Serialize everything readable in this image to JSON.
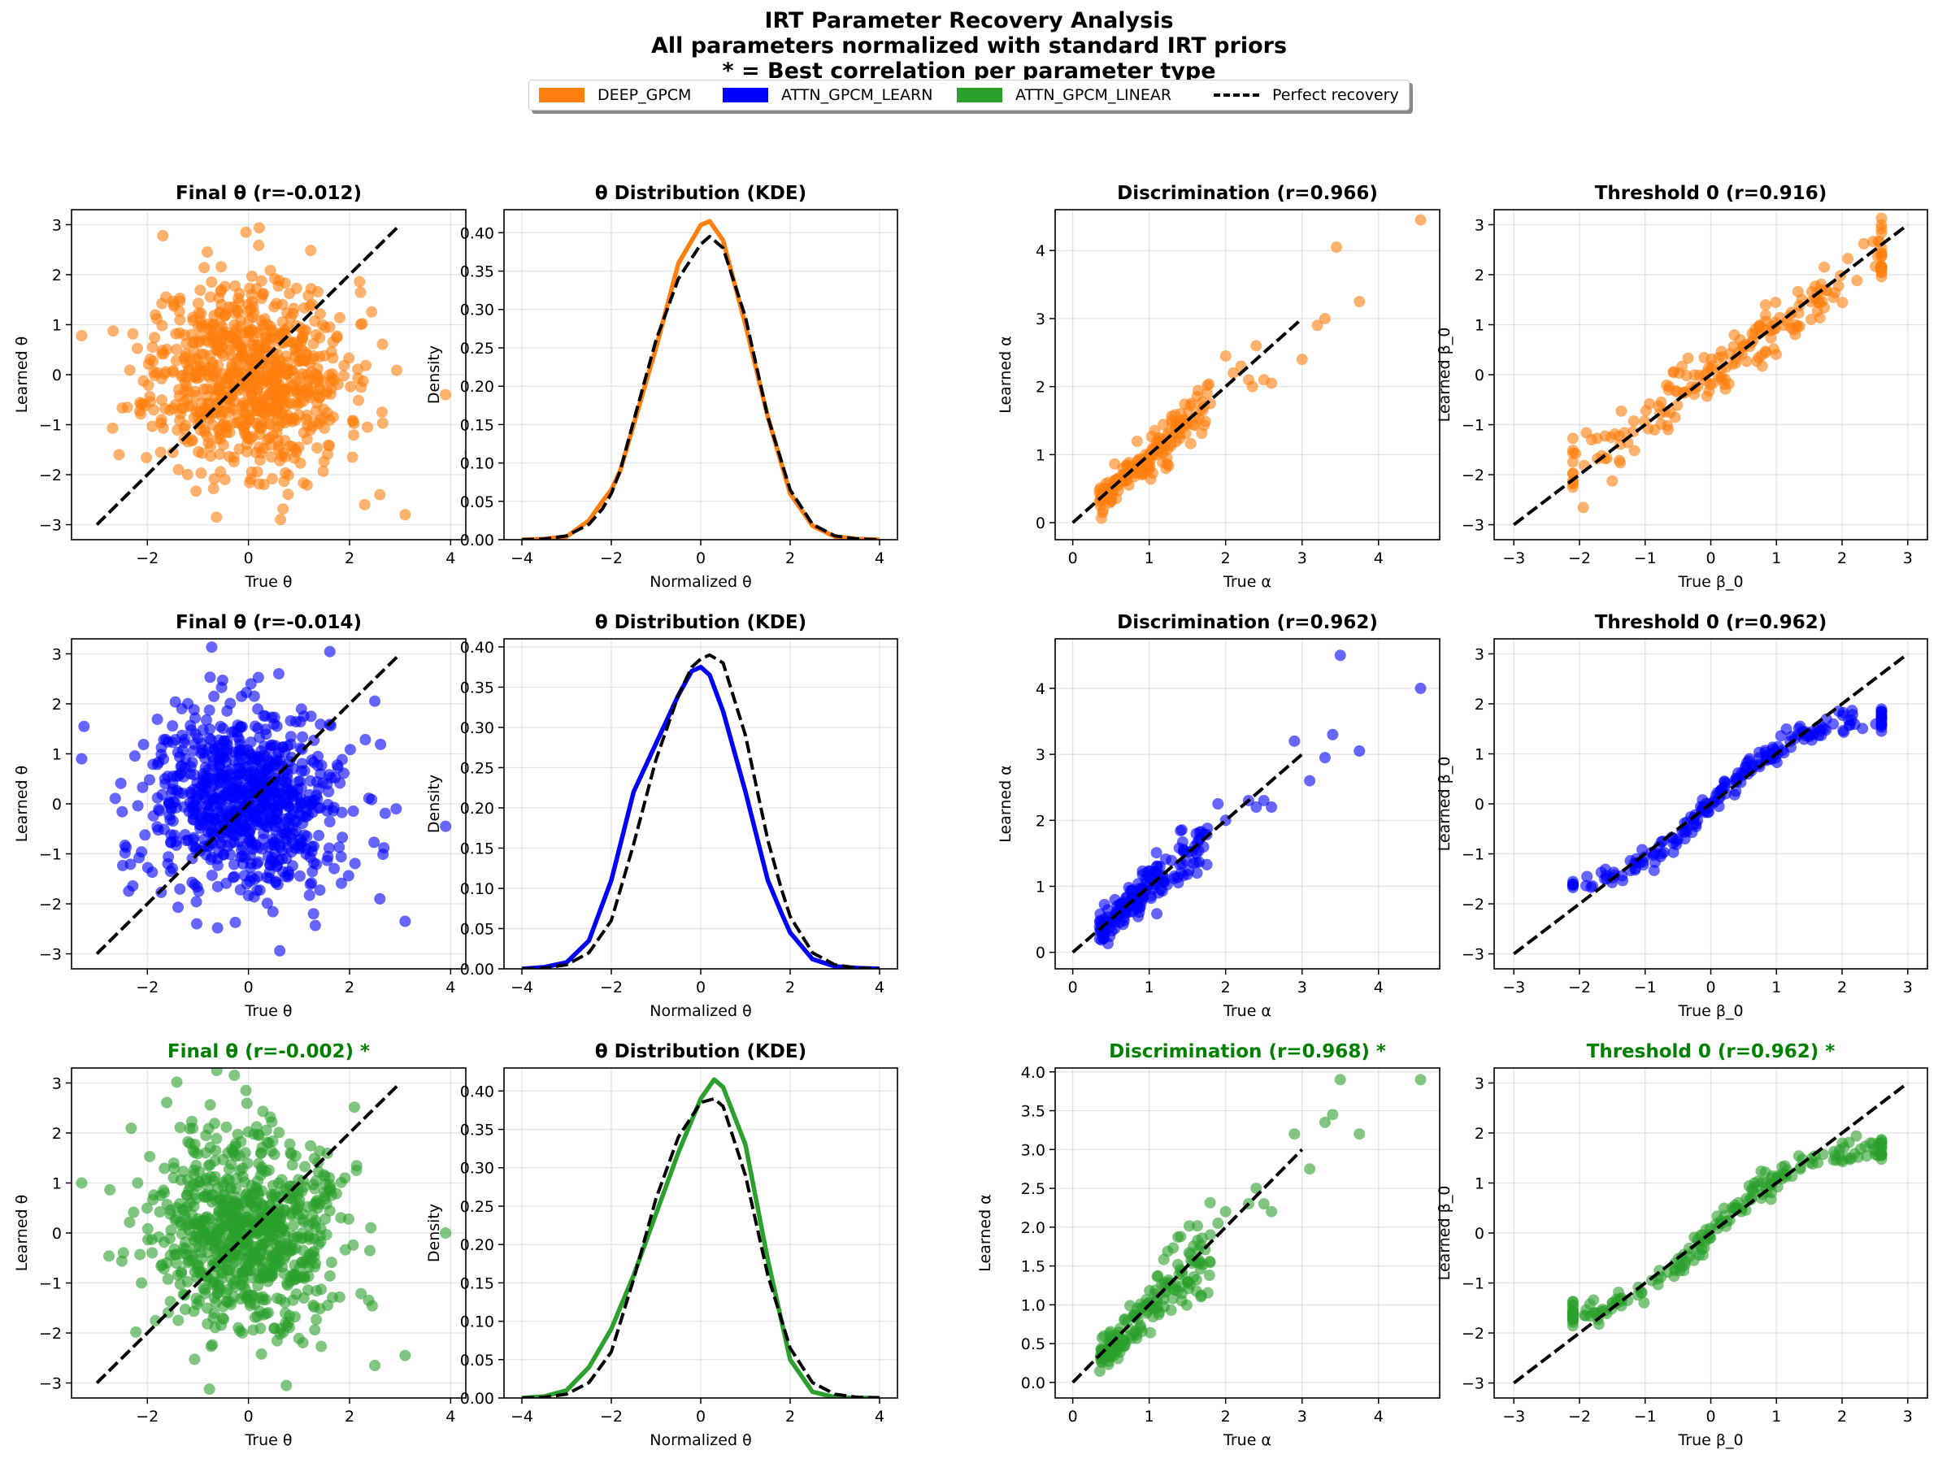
{
  "suptitle": {
    "line1": "IRT Parameter Recovery Analysis",
    "line2": "All parameters normalized with standard IRT priors",
    "line3": "* = Best correlation per parameter type"
  },
  "legend": [
    {
      "label": "DEEP_GPCM",
      "color": "#ff7f0e",
      "kind": "patch"
    },
    {
      "label": "ATTN_GPCM_LEARN",
      "color": "#0000ff",
      "kind": "patch"
    },
    {
      "label": "ATTN_GPCM_LINEAR",
      "color": "#2ca02c",
      "kind": "patch"
    },
    {
      "label": "Perfect recovery",
      "color": "#000000",
      "kind": "dashed"
    }
  ],
  "colors": {
    "DEEP_GPCM": "#ff7f0e",
    "ATTN_GPCM_LEARN": "#0000ff",
    "ATTN_GPCM_LINEAR": "#2ca02c",
    "best_title": "#008000",
    "reference": "#000000"
  },
  "chart_data": [
    {
      "type": "scatter",
      "title": "Final θ (r=-0.012)",
      "best": false,
      "xlabel": "True θ",
      "ylabel": "Learned θ",
      "xlim": [
        -3.5,
        4.3
      ],
      "ylim": [
        -3.3,
        3.3
      ],
      "xticks": [
        -2,
        0,
        2,
        4
      ],
      "yticks": [
        -3,
        -2,
        -1,
        0,
        1,
        2,
        3
      ],
      "series_color": "#ff7f0e",
      "n_points": 800,
      "x_sd": 0.95,
      "y_sd": 0.95,
      "r": -0.012,
      "seed": 11,
      "outliers": [
        [
          -3.3,
          0.78
        ],
        [
          3.9,
          -0.4
        ],
        [
          3.1,
          -2.8
        ],
        [
          2.3,
          -2.6
        ],
        [
          2.6,
          -2.4
        ],
        [
          -0.05,
          2.85
        ]
      ],
      "reference_line": [
        [
          -3,
          -3
        ],
        [
          3,
          3
        ]
      ],
      "grid": true
    },
    {
      "type": "line",
      "title": "θ Distribution (KDE)",
      "best": false,
      "xlabel": "Normalized θ",
      "ylabel": "Density",
      "xlim": [
        -4.4,
        4.4
      ],
      "ylim": [
        0,
        0.43
      ],
      "xticks": [
        -4,
        -2,
        0,
        2,
        4
      ],
      "yticks": [
        0,
        0.05,
        0.1,
        0.15,
        0.2,
        0.25,
        0.3,
        0.35,
        0.4
      ],
      "ytick_labels": [
        "0.00",
        "0.05",
        "0.10",
        "0.15",
        "0.20",
        "0.25",
        "0.30",
        "0.35",
        "0.40"
      ],
      "x": [
        -4,
        -3.5,
        -3,
        -2.5,
        -2.2,
        -2,
        -1.8,
        -1.5,
        -1,
        -0.5,
        0,
        0.2,
        0.5,
        1,
        1.5,
        2,
        2.5,
        3,
        3.5,
        4
      ],
      "series": [
        {
          "name": "DEEP_GPCM",
          "color": "#ff7f0e",
          "values": [
            0,
            0.001,
            0.004,
            0.025,
            0.05,
            0.065,
            0.09,
            0.15,
            0.25,
            0.36,
            0.41,
            0.415,
            0.39,
            0.28,
            0.16,
            0.06,
            0.018,
            0.004,
            0.001,
            0
          ]
        },
        {
          "name": "Perfect recovery",
          "color": "#000000",
          "dashed": true,
          "values": [
            0,
            0.001,
            0.005,
            0.02,
            0.04,
            0.06,
            0.09,
            0.155,
            0.26,
            0.34,
            0.385,
            0.395,
            0.38,
            0.29,
            0.16,
            0.065,
            0.02,
            0.005,
            0.001,
            0
          ]
        }
      ],
      "grid": true
    },
    {
      "type": "scatter",
      "title": "Discrimination (r=0.966)",
      "best": false,
      "xlabel": "True α",
      "ylabel": "Learned α",
      "xlim": [
        -0.23,
        4.8
      ],
      "ylim": [
        -0.25,
        4.6
      ],
      "xticks": [
        0,
        1,
        2,
        3,
        4
      ],
      "yticks": [
        0,
        1,
        2,
        3,
        4
      ],
      "series_color": "#ff7f0e",
      "alpha_points": [
        [
          0.4,
          0.35
        ],
        [
          0.45,
          0.5
        ],
        [
          0.5,
          0.42
        ],
        [
          0.55,
          0.6
        ],
        [
          0.6,
          0.55
        ],
        [
          0.65,
          0.7
        ],
        [
          0.7,
          0.62
        ],
        [
          0.75,
          0.8
        ],
        [
          0.8,
          0.72
        ],
        [
          0.85,
          0.9
        ],
        [
          0.9,
          0.85
        ],
        [
          0.95,
          1.0
        ],
        [
          1.0,
          0.95
        ],
        [
          1.05,
          1.1
        ],
        [
          1.1,
          1.0
        ],
        [
          1.15,
          1.2
        ],
        [
          1.2,
          1.15
        ],
        [
          1.25,
          1.3
        ],
        [
          1.3,
          1.25
        ],
        [
          1.35,
          1.4
        ],
        [
          1.4,
          1.3
        ],
        [
          1.45,
          1.5
        ],
        [
          1.5,
          1.45
        ],
        [
          1.6,
          1.55
        ],
        [
          1.7,
          1.65
        ],
        [
          1.8,
          1.75
        ],
        [
          2.0,
          2.45
        ],
        [
          2.1,
          2.2
        ],
        [
          2.2,
          2.3
        ],
        [
          2.3,
          2.1
        ],
        [
          2.4,
          2.6
        ],
        [
          2.5,
          2.1
        ],
        [
          2.6,
          2.05
        ],
        [
          2.35,
          2.0
        ],
        [
          3.0,
          2.4
        ],
        [
          3.2,
          2.9
        ],
        [
          3.3,
          3.0
        ],
        [
          3.45,
          4.05
        ],
        [
          3.75,
          3.25
        ],
        [
          4.55,
          4.45
        ]
      ],
      "dense_range": [
        0.35,
        1.8
      ],
      "dense_n": 150,
      "r": 0.966,
      "seed": 21,
      "reference_line": [
        [
          0,
          0
        ],
        [
          3,
          3
        ]
      ],
      "grid": true
    },
    {
      "type": "scatter",
      "title": "Threshold 0 (r=0.916)",
      "best": false,
      "xlabel": "True β_0",
      "ylabel": "Learned β_0",
      "xlim": [
        -3.3,
        3.3
      ],
      "ylim": [
        -3.3,
        3.3
      ],
      "xticks": [
        -3,
        -2,
        -1,
        0,
        1,
        2,
        3
      ],
      "yticks": [
        -3,
        -2,
        -1,
        0,
        1,
        2,
        3
      ],
      "series_color": "#ff7f0e",
      "dense_range": [
        -2.1,
        2.6
      ],
      "dense_n": 200,
      "mode": "linear_noise",
      "noise": 0.3,
      "seed": 31,
      "reference_line": [
        [
          -3,
          -3
        ],
        [
          3,
          3
        ]
      ],
      "grid": true
    },
    {
      "type": "scatter",
      "title": "Final θ (r=-0.014)",
      "best": false,
      "xlabel": "True θ",
      "ylabel": "Learned θ",
      "xlim": [
        -3.5,
        4.3
      ],
      "ylim": [
        -3.3,
        3.3
      ],
      "xticks": [
        -2,
        0,
        2,
        4
      ],
      "yticks": [
        -3,
        -2,
        -1,
        0,
        1,
        2,
        3
      ],
      "series_color": "#0000ff",
      "n_points": 800,
      "x_sd": 0.95,
      "y_sd": 0.95,
      "r": -0.014,
      "seed": 12,
      "outliers": [
        [
          -3.3,
          0.9
        ],
        [
          3.9,
          -0.45
        ],
        [
          3.1,
          -2.35
        ],
        [
          2.6,
          -1.9
        ],
        [
          0.05,
          2.4
        ],
        [
          0.6,
          2.6
        ]
      ],
      "reference_line": [
        [
          -3,
          -3
        ],
        [
          3,
          3
        ]
      ],
      "grid": true
    },
    {
      "type": "line",
      "title": "θ Distribution (KDE)",
      "best": false,
      "xlabel": "Normalized θ",
      "ylabel": "Density",
      "xlim": [
        -4.4,
        4.4
      ],
      "ylim": [
        0,
        0.41
      ],
      "xticks": [
        -4,
        -2,
        0,
        2,
        4
      ],
      "yticks": [
        0,
        0.05,
        0.1,
        0.15,
        0.2,
        0.25,
        0.3,
        0.35,
        0.4
      ],
      "ytick_labels": [
        "0.00",
        "0.05",
        "0.10",
        "0.15",
        "0.20",
        "0.25",
        "0.30",
        "0.35",
        "0.40"
      ],
      "x": [
        -4,
        -3.5,
        -3,
        -2.5,
        -2,
        -1.5,
        -1,
        -0.5,
        -0.2,
        0,
        0.2,
        0.5,
        1,
        1.5,
        1.8,
        2,
        2.5,
        3,
        3.5,
        4
      ],
      "series": [
        {
          "name": "ATTN_GPCM_LEARN",
          "color": "#0000ff",
          "values": [
            0,
            0.002,
            0.008,
            0.035,
            0.11,
            0.22,
            0.28,
            0.34,
            0.37,
            0.375,
            0.365,
            0.32,
            0.22,
            0.11,
            0.07,
            0.045,
            0.012,
            0.003,
            0.001,
            0
          ]
        },
        {
          "name": "Perfect recovery",
          "color": "#000000",
          "dashed": true,
          "values": [
            0,
            0.001,
            0.005,
            0.02,
            0.06,
            0.155,
            0.26,
            0.34,
            0.375,
            0.385,
            0.39,
            0.38,
            0.29,
            0.16,
            0.1,
            0.065,
            0.02,
            0.005,
            0.001,
            0
          ]
        }
      ],
      "grid": true
    },
    {
      "type": "scatter",
      "title": "Discrimination (r=0.962)",
      "best": false,
      "xlabel": "True α",
      "ylabel": "Learned α",
      "xlim": [
        -0.23,
        4.8
      ],
      "ylim": [
        -0.25,
        4.75
      ],
      "xticks": [
        0,
        1,
        2,
        3,
        4
      ],
      "yticks": [
        0,
        1,
        2,
        3,
        4
      ],
      "series_color": "#0000ff",
      "alpha_points": [
        [
          1.9,
          2.25
        ],
        [
          2.0,
          2.0
        ],
        [
          2.3,
          2.3
        ],
        [
          2.4,
          2.2
        ],
        [
          2.5,
          2.3
        ],
        [
          2.6,
          2.2
        ],
        [
          2.9,
          3.2
        ],
        [
          3.1,
          2.6
        ],
        [
          3.3,
          2.95
        ],
        [
          3.4,
          3.3
        ],
        [
          3.5,
          4.5
        ],
        [
          3.75,
          3.05
        ],
        [
          4.55,
          4.0
        ]
      ],
      "dense_range": [
        0.35,
        1.8
      ],
      "dense_n": 170,
      "r": 0.962,
      "seed": 22,
      "reference_line": [
        [
          0,
          0
        ],
        [
          3,
          3
        ]
      ],
      "grid": true
    },
    {
      "type": "scatter",
      "title": "Threshold 0 (r=0.962)",
      "best": false,
      "xlabel": "True β_0",
      "ylabel": "Learned β_0",
      "xlim": [
        -3.3,
        3.3
      ],
      "ylim": [
        -3.3,
        3.3
      ],
      "xticks": [
        -3,
        -2,
        -1,
        0,
        1,
        2,
        3
      ],
      "yticks": [
        -3,
        -2,
        -1,
        0,
        1,
        2,
        3
      ],
      "series_color": "#0000ff",
      "dense_range": [
        -2.1,
        2.6
      ],
      "dense_n": 200,
      "mode": "sigmoid",
      "noise": 0.12,
      "seed": 32,
      "reference_line": [
        [
          -3,
          -3
        ],
        [
          3,
          3
        ]
      ],
      "grid": true
    },
    {
      "type": "scatter",
      "title": "Final θ (r=-0.002) *",
      "best": true,
      "xlabel": "True θ",
      "ylabel": "Learned θ",
      "xlim": [
        -3.5,
        4.3
      ],
      "ylim": [
        -3.3,
        3.3
      ],
      "xticks": [
        -2,
        0,
        2,
        4
      ],
      "yticks": [
        -3,
        -2,
        -1,
        0,
        1,
        2,
        3
      ],
      "series_color": "#2ca02c",
      "n_points": 800,
      "x_sd": 0.95,
      "y_sd": 0.95,
      "r": -0.002,
      "seed": 13,
      "outliers": [
        [
          -3.3,
          1.0
        ],
        [
          3.9,
          0.0
        ],
        [
          3.1,
          -2.45
        ],
        [
          2.5,
          -2.65
        ],
        [
          -0.05,
          2.85
        ],
        [
          0.75,
          -3.05
        ]
      ],
      "reference_line": [
        [
          -3,
          -3
        ],
        [
          3,
          3
        ]
      ],
      "grid": true
    },
    {
      "type": "line",
      "title": "θ Distribution (KDE)",
      "best": false,
      "xlabel": "Normalized θ",
      "ylabel": "Density",
      "xlim": [
        -4.4,
        4.4
      ],
      "ylim": [
        0,
        0.43
      ],
      "xticks": [
        -4,
        -2,
        0,
        2,
        4
      ],
      "yticks": [
        0,
        0.05,
        0.1,
        0.15,
        0.2,
        0.25,
        0.3,
        0.35,
        0.4
      ],
      "ytick_labels": [
        "0.00",
        "0.05",
        "0.10",
        "0.15",
        "0.20",
        "0.25",
        "0.30",
        "0.35",
        "0.40"
      ],
      "x": [
        -4,
        -3.5,
        -3,
        -2.5,
        -2,
        -1.5,
        -1,
        -0.5,
        0,
        0.3,
        0.5,
        1,
        1.5,
        2,
        2.5,
        3,
        3.5,
        4
      ],
      "series": [
        {
          "name": "ATTN_GPCM_LINEAR",
          "color": "#2ca02c",
          "values": [
            0,
            0.002,
            0.01,
            0.04,
            0.09,
            0.16,
            0.24,
            0.32,
            0.39,
            0.415,
            0.405,
            0.33,
            0.18,
            0.05,
            0.008,
            0.001,
            0,
            0
          ]
        },
        {
          "name": "Perfect recovery",
          "color": "#000000",
          "dashed": true,
          "values": [
            0,
            0.001,
            0.005,
            0.02,
            0.06,
            0.155,
            0.26,
            0.34,
            0.385,
            0.39,
            0.38,
            0.29,
            0.16,
            0.065,
            0.02,
            0.005,
            0.001,
            0
          ]
        }
      ],
      "grid": true
    },
    {
      "type": "scatter",
      "title": "Discrimination (r=0.968) *",
      "best": true,
      "xlabel": "True α",
      "ylabel": "Learned α",
      "xlim": [
        -0.23,
        4.8
      ],
      "ylim": [
        -0.2,
        4.05
      ],
      "xticks": [
        0,
        1,
        2,
        3,
        4
      ],
      "yticks": [
        0,
        0.5,
        1,
        1.5,
        2,
        2.5,
        3,
        3.5,
        4
      ],
      "ytick_labels": [
        "0.0",
        "0.5",
        "1.0",
        "1.5",
        "2.0",
        "2.5",
        "3.0",
        "3.5",
        "4.0"
      ],
      "series_color": "#2ca02c",
      "alpha_points": [
        [
          1.8,
          1.9
        ],
        [
          1.9,
          2.05
        ],
        [
          2.0,
          2.2
        ],
        [
          2.3,
          2.3
        ],
        [
          2.4,
          2.5
        ],
        [
          2.5,
          2.3
        ],
        [
          2.6,
          2.2
        ],
        [
          2.9,
          3.2
        ],
        [
          3.1,
          2.75
        ],
        [
          3.3,
          3.35
        ],
        [
          3.4,
          3.45
        ],
        [
          3.5,
          3.9
        ],
        [
          3.75,
          3.2
        ],
        [
          4.55,
          3.9
        ]
      ],
      "dense_range": [
        0.35,
        1.8
      ],
      "dense_n": 170,
      "r": 0.968,
      "seed": 23,
      "reference_line": [
        [
          0,
          0
        ],
        [
          3,
          3
        ]
      ],
      "grid": true
    },
    {
      "type": "scatter",
      "title": "Threshold 0 (r=0.962) *",
      "best": true,
      "xlabel": "True β_0",
      "ylabel": "Learned β_0",
      "xlim": [
        -3.3,
        3.3
      ],
      "ylim": [
        -3.3,
        3.3
      ],
      "xticks": [
        -3,
        -2,
        -1,
        0,
        1,
        2,
        3
      ],
      "yticks": [
        -3,
        -2,
        -1,
        0,
        1,
        2,
        3
      ],
      "series_color": "#2ca02c",
      "dense_range": [
        -2.1,
        2.6
      ],
      "dense_n": 200,
      "mode": "sigmoid",
      "noise": 0.12,
      "seed": 33,
      "reference_line": [
        [
          -3,
          -3
        ],
        [
          3,
          3
        ]
      ],
      "grid": true
    }
  ]
}
